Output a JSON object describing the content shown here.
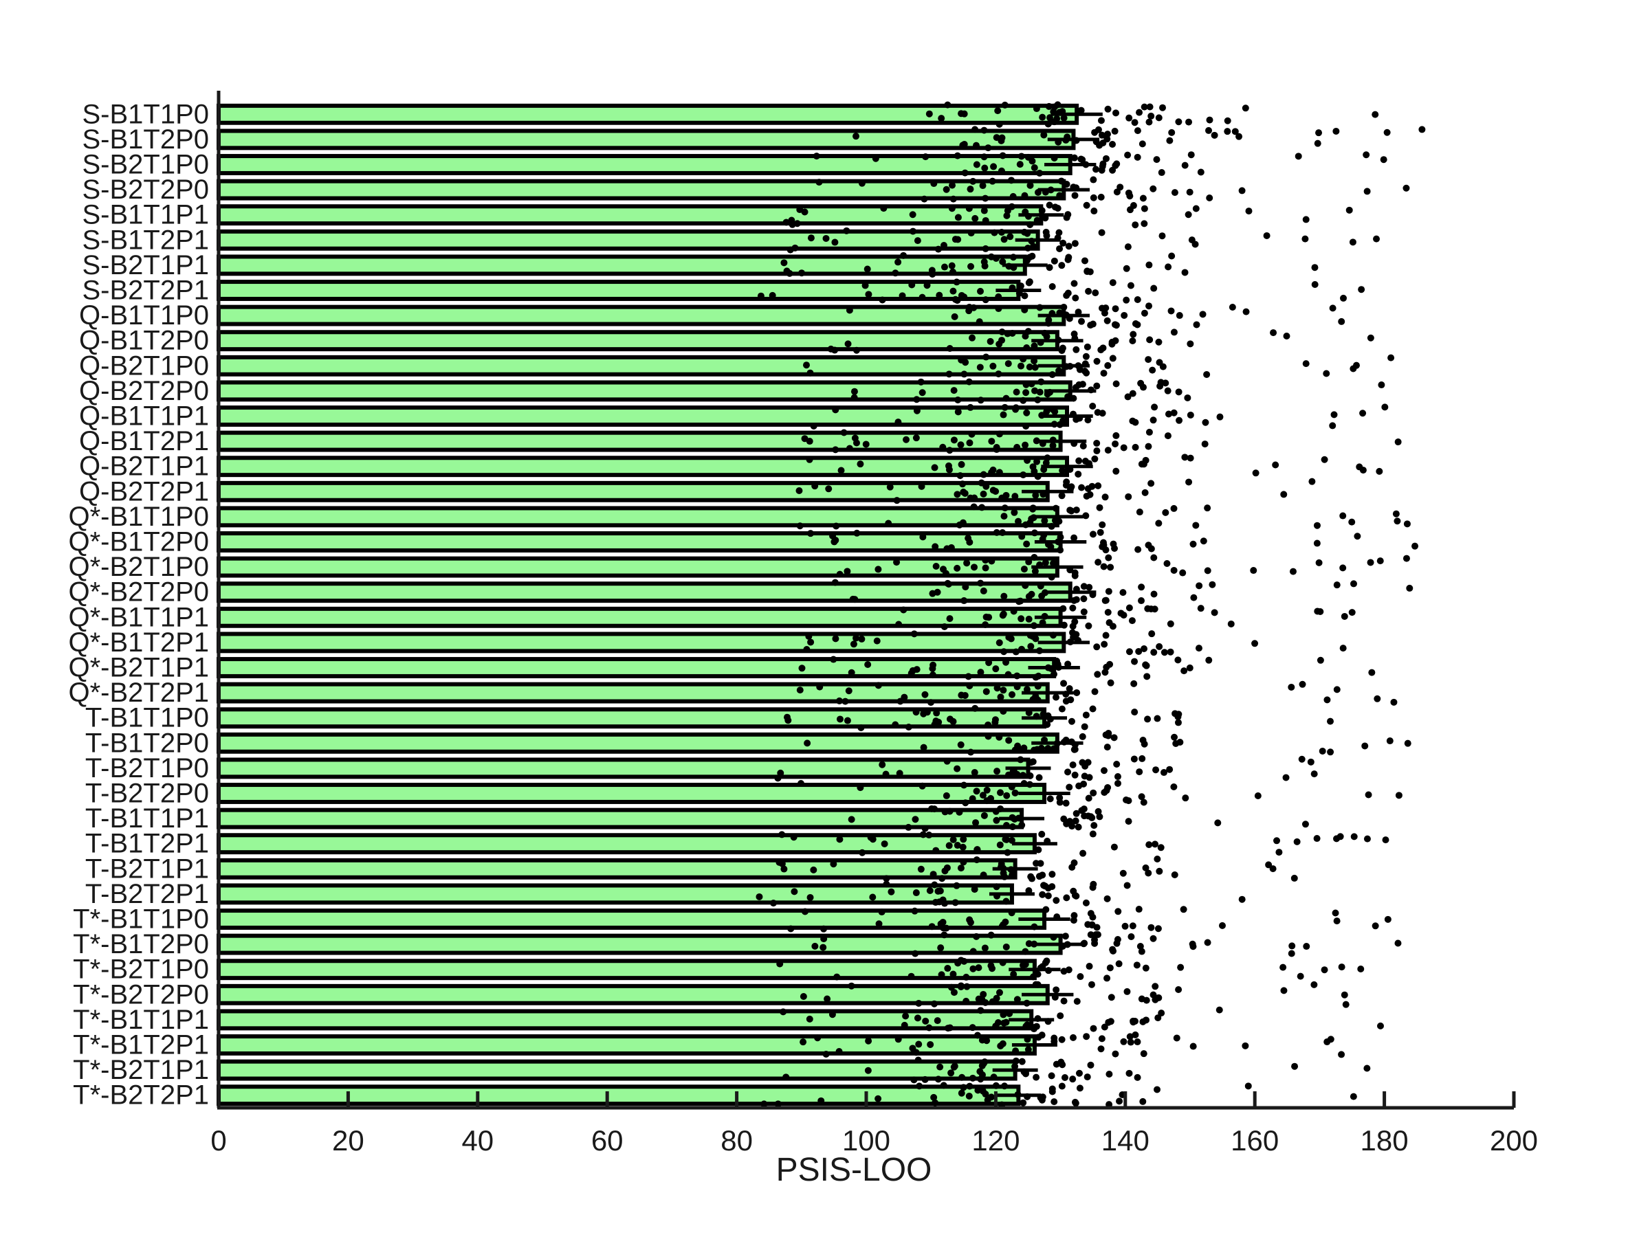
{
  "chart_data": {
    "type": "bar",
    "orientation": "horizontal",
    "title": "",
    "xlabel": "PSIS-LOO",
    "ylabel": "",
    "xlim": [
      0,
      200
    ],
    "x_ticks": [
      0,
      20,
      40,
      60,
      80,
      100,
      120,
      140,
      160,
      180,
      200
    ],
    "grid": false,
    "legend": "none",
    "bar_color": "#98F898",
    "bar_edge_color": "#000000",
    "point_color": "#000000",
    "categories": [
      "S-B1T1P0",
      "S-B1T2P0",
      "S-B2T1P0",
      "S-B2T2P0",
      "S-B1T1P1",
      "S-B1T2P1",
      "S-B2T1P1",
      "S-B2T2P1",
      "Q-B1T1P0",
      "Q-B1T2P0",
      "Q-B2T1P0",
      "Q-B2T2P0",
      "Q-B1T1P1",
      "Q-B1T2P1",
      "Q-B2T1P1",
      "Q-B2T2P1",
      "Q*-B1T1P0",
      "Q*-B1T2P0",
      "Q*-B2T1P0",
      "Q*-B2T2P0",
      "Q*-B1T1P1",
      "Q*-B1T2P1",
      "Q*-B2T1P1",
      "Q*-B2T2P1",
      "T-B1T1P0",
      "T-B1T2P0",
      "T-B2T1P0",
      "T-B2T2P0",
      "T-B1T1P1",
      "T-B1T2P1",
      "T-B2T1P1",
      "T-B2T2P1",
      "T*-B1T1P0",
      "T*-B1T2P0",
      "T*-B2T1P0",
      "T*-B2T2P0",
      "T*-B1T1P1",
      "T*-B1T2P1",
      "T*-B2T1P1",
      "T*-B2T2P1"
    ],
    "values": [
      132.5,
      132.0,
      131.5,
      130.5,
      127.0,
      126.5,
      124.5,
      123.5,
      130.5,
      129.5,
      130.5,
      131.5,
      131.0,
      130.0,
      131.0,
      128.0,
      129.5,
      130.0,
      129.5,
      131.5,
      130.0,
      130.5,
      129.0,
      128.0,
      127.5,
      129.5,
      125.0,
      127.5,
      124.0,
      126.0,
      123.0,
      122.5,
      127.5,
      130.0,
      126.0,
      128.0,
      125.5,
      126.0,
      123.0,
      123.5
    ],
    "errors": [
      4.0,
      4.0,
      4.0,
      4.0,
      3.5,
      3.5,
      3.5,
      3.5,
      4.0,
      4.0,
      4.0,
      4.0,
      4.0,
      4.0,
      4.0,
      4.0,
      4.0,
      4.0,
      4.0,
      4.0,
      4.0,
      4.0,
      4.0,
      4.0,
      3.5,
      4.0,
      3.5,
      4.0,
      3.5,
      3.5,
      3.5,
      3.5,
      4.0,
      4.0,
      4.0,
      4.0,
      3.5,
      3.5,
      3.5,
      3.5
    ],
    "points_description": "individual subject values scattered around each bar"
  }
}
